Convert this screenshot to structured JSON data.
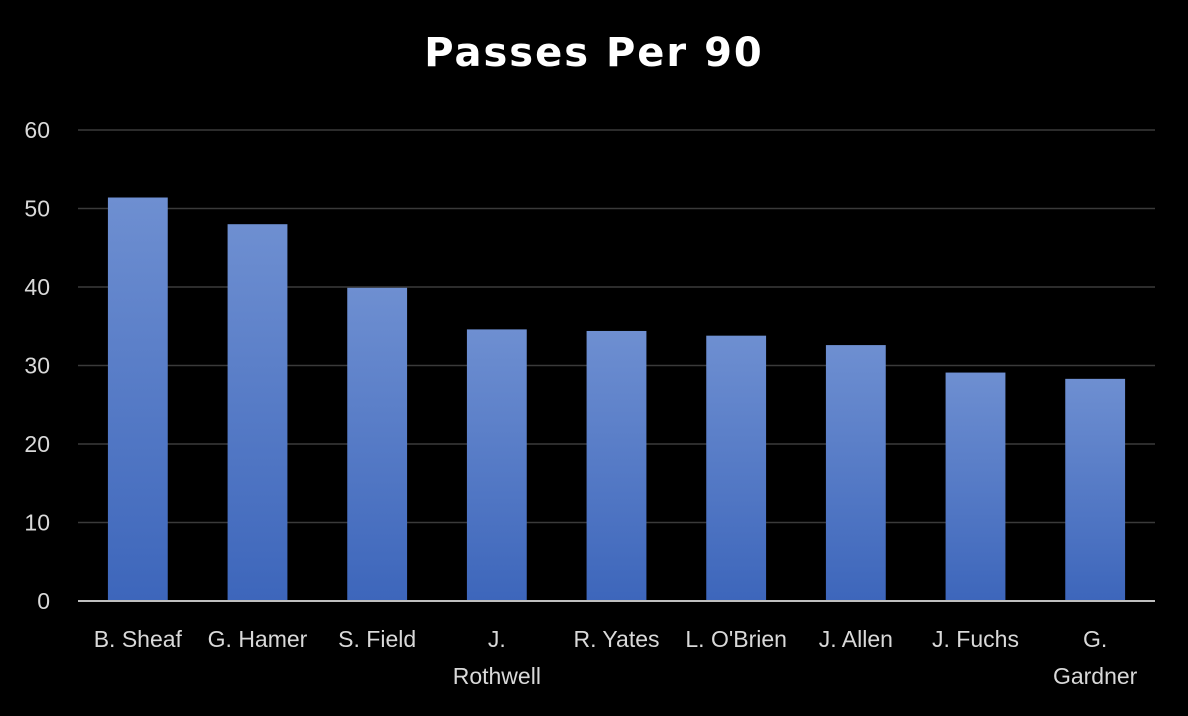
{
  "chart_data": {
    "type": "bar",
    "title": "Passes Per 90",
    "xlabel": "",
    "ylabel": "",
    "categories": [
      "B. Sheaf",
      "G. Hamer",
      "S. Field",
      "J. Rothwell",
      "R. Yates",
      "L. O'Brien",
      "J. Allen",
      "J. Fuchs",
      "G. Gardner"
    ],
    "category_lines": [
      [
        "B. Sheaf"
      ],
      [
        "G. Hamer"
      ],
      [
        "S. Field"
      ],
      [
        "J.",
        "Rothwell"
      ],
      [
        "R. Yates"
      ],
      [
        "L. O'Brien"
      ],
      [
        "J. Allen"
      ],
      [
        "J. Fuchs"
      ],
      [
        "G.",
        "Gardner"
      ]
    ],
    "values": [
      51.4,
      48.0,
      39.9,
      34.6,
      34.4,
      33.8,
      32.6,
      29.1,
      28.3
    ],
    "ylim": [
      0,
      60
    ],
    "yticks": [
      0,
      10,
      20,
      30,
      40,
      50,
      60
    ],
    "grid": true,
    "colors": {
      "background": "#000000",
      "bar_top": "#6e8fd1",
      "bar_bottom": "#3d66bb",
      "grid": "#3a3a3a",
      "axis": "#bfbfbf",
      "text": "#d9d9d9",
      "title": "#ffffff"
    }
  }
}
